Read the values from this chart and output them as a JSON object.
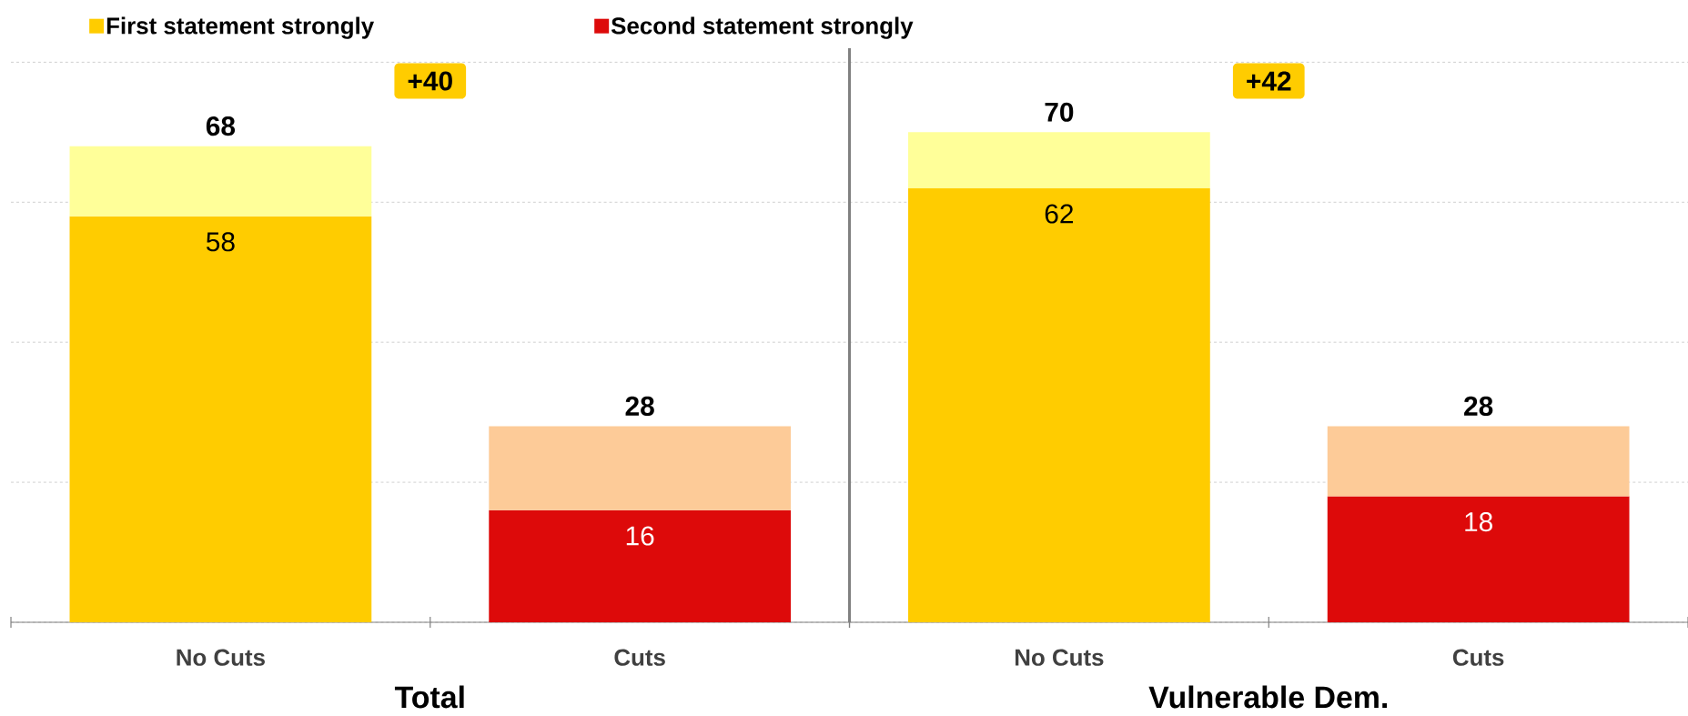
{
  "chart_data": [
    {
      "type": "bar",
      "stacked": true,
      "categories": [
        "No Cuts",
        "Cuts"
      ],
      "xlabel": "Total",
      "totals": [
        "68",
        "28"
      ],
      "annotations": [
        "+40"
      ],
      "ylim": [
        0,
        82
      ],
      "grid": "y",
      "tick_labels": "x",
      "legend": "top",
      "series": [
        {
          "name": "First statement strongly",
          "color": "#ffcc00",
          "values": [
            58,
            null
          ],
          "value_labels": [
            "58",
            null
          ]
        },
        {
          "name": "Second statement strongly",
          "color": "#dd0a0a",
          "values": [
            null,
            16
          ],
          "value_labels": [
            null,
            "16"
          ]
        },
        {
          "colors": [
            "#ffff99",
            "#fdcb98"
          ],
          "values": [
            10,
            12
          ]
        }
      ]
    },
    {
      "type": "bar",
      "stacked": true,
      "categories": [
        "No Cuts",
        "Cuts"
      ],
      "xlabel": "Vulnerable Dem.",
      "totals": [
        "70",
        "28"
      ],
      "annotations": [
        "+42"
      ],
      "ylim": [
        0,
        82
      ],
      "grid": "y",
      "tick_labels": "x",
      "series": [
        {
          "color": "#ffcc00",
          "values": [
            62,
            null
          ],
          "value_labels": [
            "62",
            null
          ]
        },
        {
          "color": "#dd0a0a",
          "values": [
            null,
            18
          ],
          "value_labels": [
            null,
            "18"
          ]
        },
        {
          "colors": [
            "#ffff99",
            "#fdcb98"
          ],
          "values": [
            8,
            10
          ]
        }
      ]
    }
  ]
}
